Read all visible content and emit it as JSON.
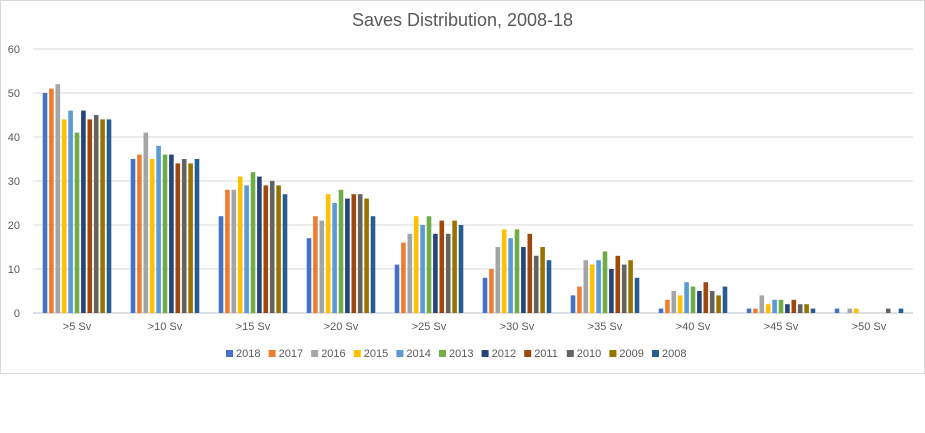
{
  "chart_data": {
    "type": "bar",
    "title": "Saves Distribution, 2008-18",
    "xlabel": "",
    "ylabel": "",
    "ylim": [
      0,
      60
    ],
    "yticks": [
      0,
      10,
      20,
      30,
      40,
      50,
      60
    ],
    "grid": true,
    "legend_position": "bottom",
    "categories": [
      ">5 Sv",
      ">10 Sv",
      ">15 Sv",
      ">20 Sv",
      ">25 Sv",
      ">30 Sv",
      ">35 Sv",
      ">40 Sv",
      ">45 Sv",
      ">50 Sv"
    ],
    "series": [
      {
        "name": "2018",
        "color": "#4472c4",
        "values": [
          50,
          35,
          22,
          17,
          11,
          8,
          4,
          1,
          1,
          1
        ]
      },
      {
        "name": "2017",
        "color": "#ed7d31",
        "values": [
          51,
          36,
          28,
          22,
          16,
          10,
          6,
          3,
          1,
          0
        ]
      },
      {
        "name": "2016",
        "color": "#a5a5a5",
        "values": [
          52,
          41,
          28,
          21,
          18,
          15,
          12,
          5,
          4,
          1
        ]
      },
      {
        "name": "2015",
        "color": "#ffc000",
        "values": [
          44,
          35,
          31,
          27,
          22,
          19,
          11,
          4,
          2,
          1
        ]
      },
      {
        "name": "2014",
        "color": "#5b9bd5",
        "values": [
          46,
          38,
          29,
          25,
          20,
          17,
          12,
          7,
          3,
          0
        ]
      },
      {
        "name": "2013",
        "color": "#70ad47",
        "values": [
          41,
          36,
          32,
          28,
          22,
          19,
          14,
          6,
          3,
          0
        ]
      },
      {
        "name": "2012",
        "color": "#264478",
        "values": [
          46,
          36,
          31,
          26,
          18,
          15,
          10,
          5,
          2,
          0
        ]
      },
      {
        "name": "2011",
        "color": "#9e480e",
        "values": [
          44,
          34,
          29,
          27,
          21,
          18,
          13,
          7,
          3,
          0
        ]
      },
      {
        "name": "2010",
        "color": "#636363",
        "values": [
          45,
          35,
          30,
          27,
          18,
          13,
          11,
          5,
          2,
          1
        ]
      },
      {
        "name": "2009",
        "color": "#997300",
        "values": [
          44,
          34,
          29,
          26,
          21,
          15,
          12,
          4,
          2,
          0
        ]
      },
      {
        "name": "2008",
        "color": "#255e91",
        "values": [
          44,
          35,
          27,
          22,
          20,
          12,
          8,
          6,
          1,
          1
        ]
      }
    ]
  }
}
